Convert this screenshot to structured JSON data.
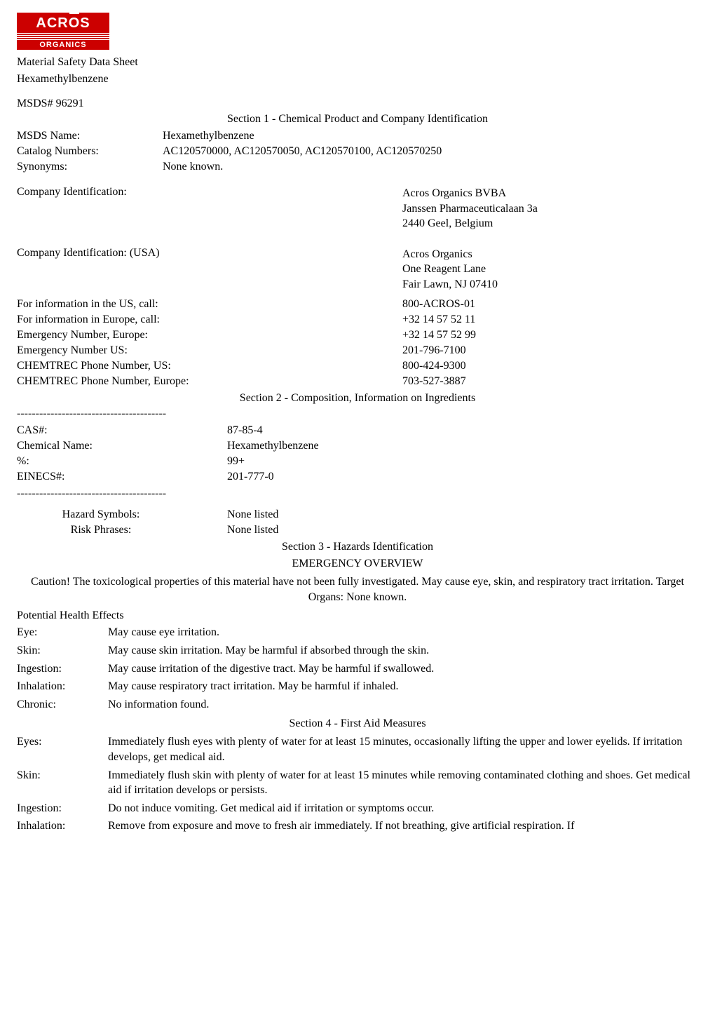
{
  "logo": {
    "top": "ACROS",
    "bottom": "ORGANICS"
  },
  "header": {
    "line1": "Material Safety Data Sheet",
    "line2": "Hexamethylbenzene"
  },
  "msds_num": "MSDS# 96291",
  "section1": {
    "title": "Section 1 - Chemical Product and Company Identification",
    "rows": {
      "msds_name_label": "MSDS Name:",
      "msds_name_value": "Hexamethylbenzene",
      "catalog_label": "Catalog Numbers:",
      "catalog_value": "AC120570000, AC120570050, AC120570100, AC120570250",
      "synonyms_label": "Synonyms:",
      "synonyms_value": "None known."
    },
    "company_id": {
      "label": "Company Identification:",
      "value_lines": [
        "Acros Organics BVBA",
        "Janssen Pharmaceuticalaan 3a",
        "2440 Geel, Belgium"
      ]
    },
    "company_id_usa": {
      "label": "Company Identification: (USA)",
      "value_lines": [
        "Acros Organics",
        "One Reagent Lane",
        "Fair Lawn, NJ 07410"
      ]
    },
    "info_rows": [
      {
        "label": "For information in the US, call:",
        "value": "800-ACROS-01"
      },
      {
        "label": "For information in Europe, call:",
        "value": "+32 14 57 52 11"
      },
      {
        "label": "Emergency Number, Europe:",
        "value": "+32 14 57 52 99"
      },
      {
        "label": "Emergency Number US:",
        "value": "201-796-7100"
      },
      {
        "label": "CHEMTREC Phone Number, US:",
        "value": "800-424-9300"
      },
      {
        "label": "CHEMTREC Phone Number, Europe:",
        "value": "703-527-3887"
      }
    ]
  },
  "section2": {
    "title": "Section 2 - Composition, Information on Ingredients",
    "dashes": "----------------------------------------",
    "rows": [
      {
        "label": "CAS#:",
        "value": "87-85-4"
      },
      {
        "label": "Chemical Name:",
        "value": "Hexamethylbenzene"
      },
      {
        "label": "%:",
        "value": "99+"
      },
      {
        "label": "EINECS#:",
        "value": "201-777-0"
      }
    ],
    "hazard_rows": [
      {
        "label": "Hazard Symbols:",
        "value": "None listed"
      },
      {
        "label": "Risk Phrases:",
        "value": "None listed"
      }
    ]
  },
  "section3": {
    "title": "Section 3 - Hazards Identification",
    "overview": "EMERGENCY OVERVIEW",
    "caution": "Caution! The toxicological properties of this material have not been fully investigated. May cause eye, skin, and respiratory tract irritation. Target Organs: None known.",
    "subhead": "Potential Health Effects",
    "effects": [
      {
        "label": "Eye:",
        "value": "May cause eye irritation."
      },
      {
        "label": "Skin:",
        "value": "May cause skin irritation. May be harmful if absorbed through the skin."
      },
      {
        "label": "Ingestion:",
        "value": "May cause irritation of the digestive tract. May be harmful if swallowed."
      },
      {
        "label": "Inhalation:",
        "value": "May cause respiratory tract irritation. May be harmful if inhaled."
      },
      {
        "label": "Chronic:",
        "value": "No information found."
      }
    ]
  },
  "section4": {
    "title": "Section 4 - First Aid Measures",
    "rows": [
      {
        "label": "Eyes:",
        "value": "Immediately flush eyes with plenty of water for at least 15 minutes, occasionally lifting the upper and lower eyelids. If irritation develops, get medical aid."
      },
      {
        "label": "Skin:",
        "value": "Immediately flush skin with plenty of water for at least 15 minutes while removing contaminated clothing and shoes. Get medical aid if irritation develops or persists."
      },
      {
        "label": "Ingestion:",
        "value": "Do not induce vomiting. Get medical aid if irritation or symptoms occur."
      },
      {
        "label": "Inhalation:",
        "value": "Remove from exposure and move to fresh air immediately. If not breathing, give artificial respiration. If"
      }
    ]
  }
}
